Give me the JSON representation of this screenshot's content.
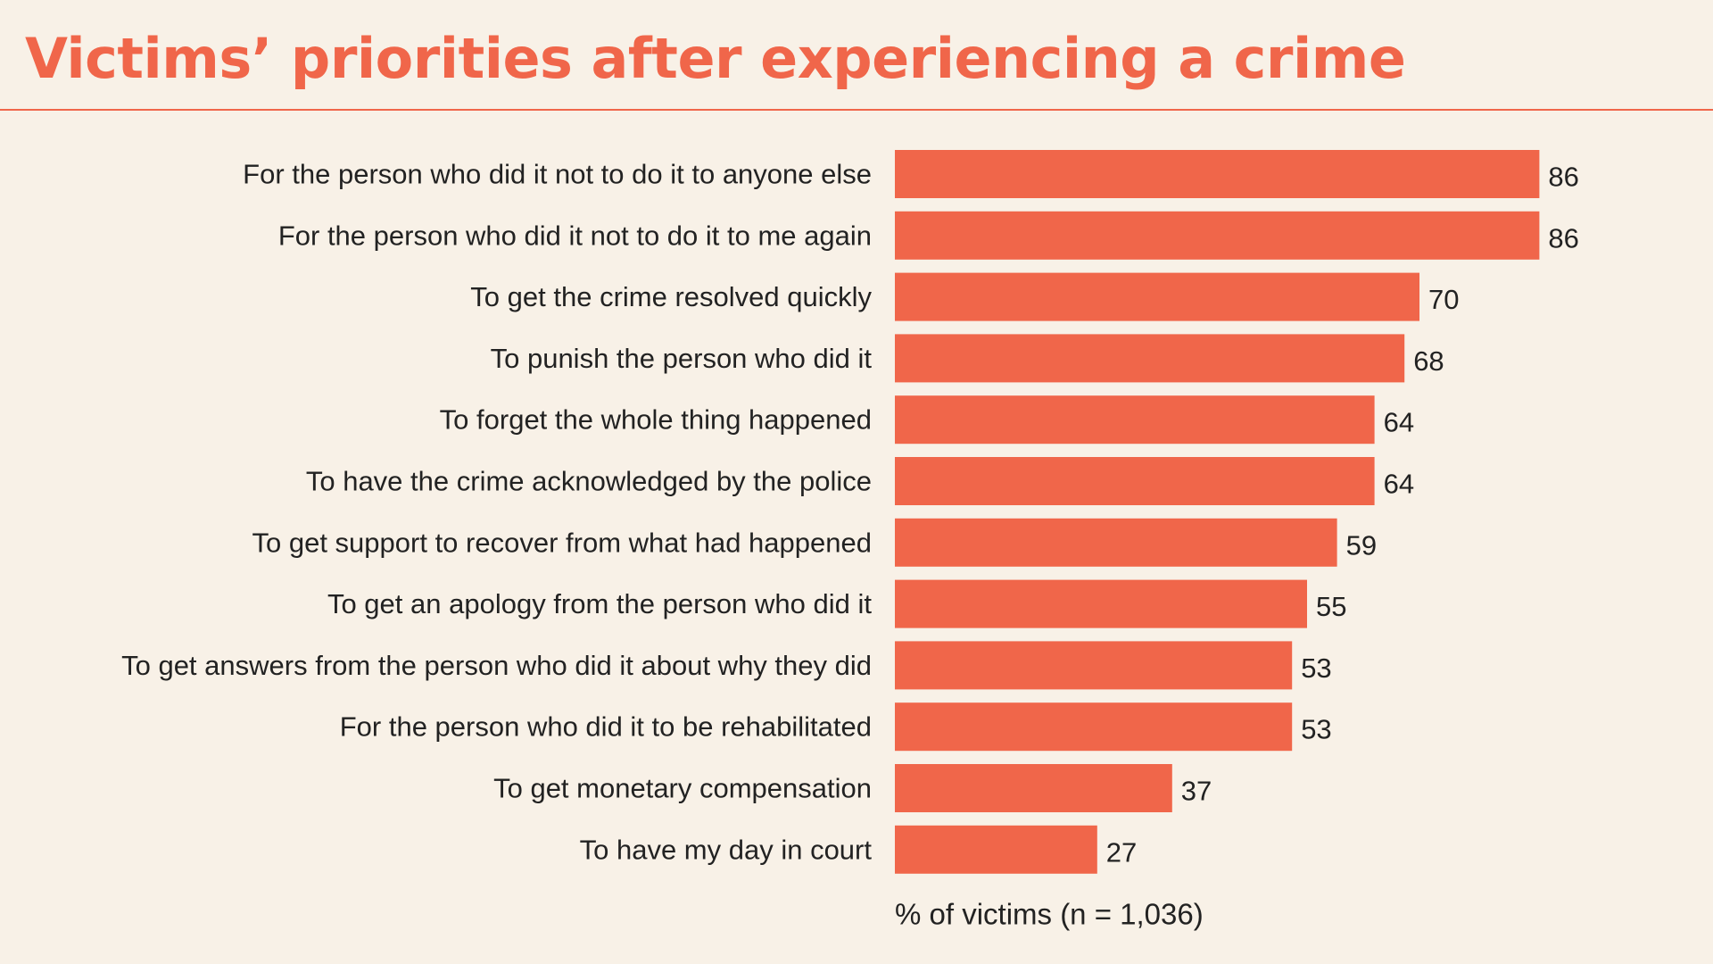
{
  "chart_data": {
    "type": "bar",
    "orientation": "horizontal",
    "title": "Victims’ priorities after experiencing a crime",
    "xlabel": "% of victims  (n = 1,036)",
    "ylabel": "",
    "xlim": [
      0,
      100
    ],
    "grid": false,
    "legend": "none",
    "categories": [
      "For the person who did it not to do it to anyone else",
      "For the person who did it not to do it to me again",
      "To get the crime resolved quickly",
      "To punish the person who did it",
      "To forget the whole thing happened",
      "To have the crime acknowledged by the police",
      "To get support to recover from what had happened",
      "To get an apology from the person who did it",
      "To get answers from the person who did it about why they did",
      "For the person who did it to be rehabilitated",
      "To get monetary compensation",
      "To have my day in court"
    ],
    "values": [
      86,
      86,
      70,
      68,
      64,
      64,
      59,
      55,
      53,
      53,
      37,
      27
    ],
    "colors": {
      "bar": "#f0664a",
      "title": "#f0664a",
      "background": "#f8f1e7",
      "text": "#222222"
    }
  }
}
